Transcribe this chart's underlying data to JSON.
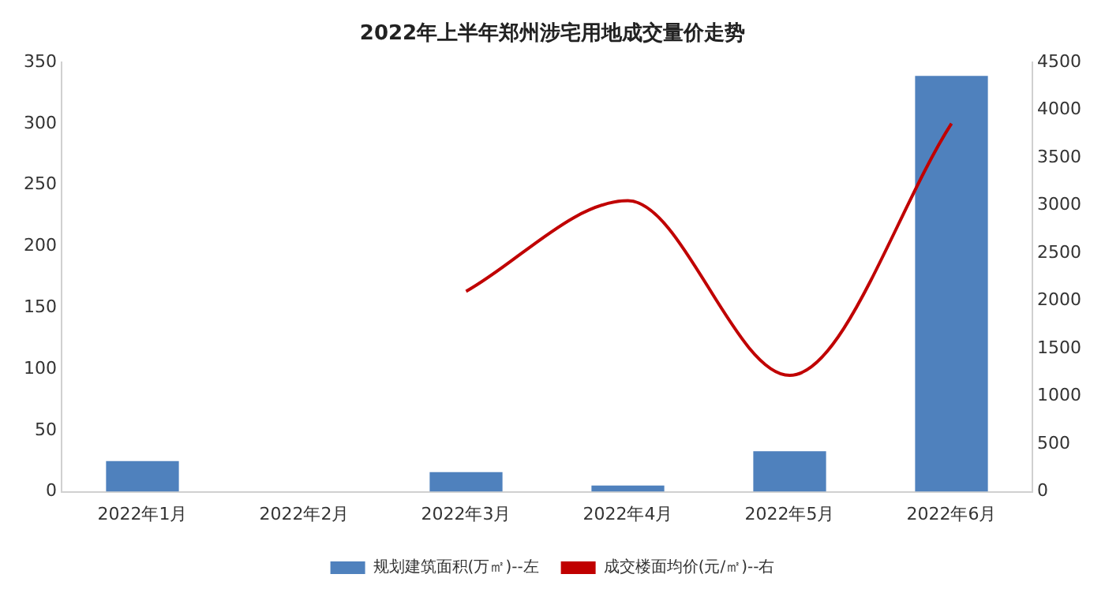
{
  "chart_data": {
    "type": "bar",
    "title": "2022年上半年郑州涉宅用地成交量价走势",
    "categories": [
      "2022年1月",
      "2022年2月",
      "2022年3月",
      "2022年4月",
      "2022年5月",
      "2022年6月"
    ],
    "series": [
      {
        "name": "规划建筑面积(万㎡)--左",
        "color": "#4f81bd",
        "values": [
          25,
          0,
          16,
          5,
          33,
          339
        ]
      },
      {
        "name": "成交楼面均价(元/㎡)--右",
        "type": "line",
        "axis": "y2",
        "color": "#c00000",
        "values": [
          null,
          null,
          2100,
          3050,
          1220,
          3860
        ]
      }
    ],
    "ylim": [
      0,
      350
    ],
    "yticks": [
      0,
      50,
      100,
      150,
      200,
      250,
      300,
      350
    ],
    "y2lim": [
      0,
      4500
    ],
    "y2ticks": [
      0,
      500,
      1000,
      1500,
      2000,
      2500,
      3000,
      3500,
      4000,
      4500
    ],
    "grid": false,
    "legend": "bottom",
    "marker": "none"
  }
}
